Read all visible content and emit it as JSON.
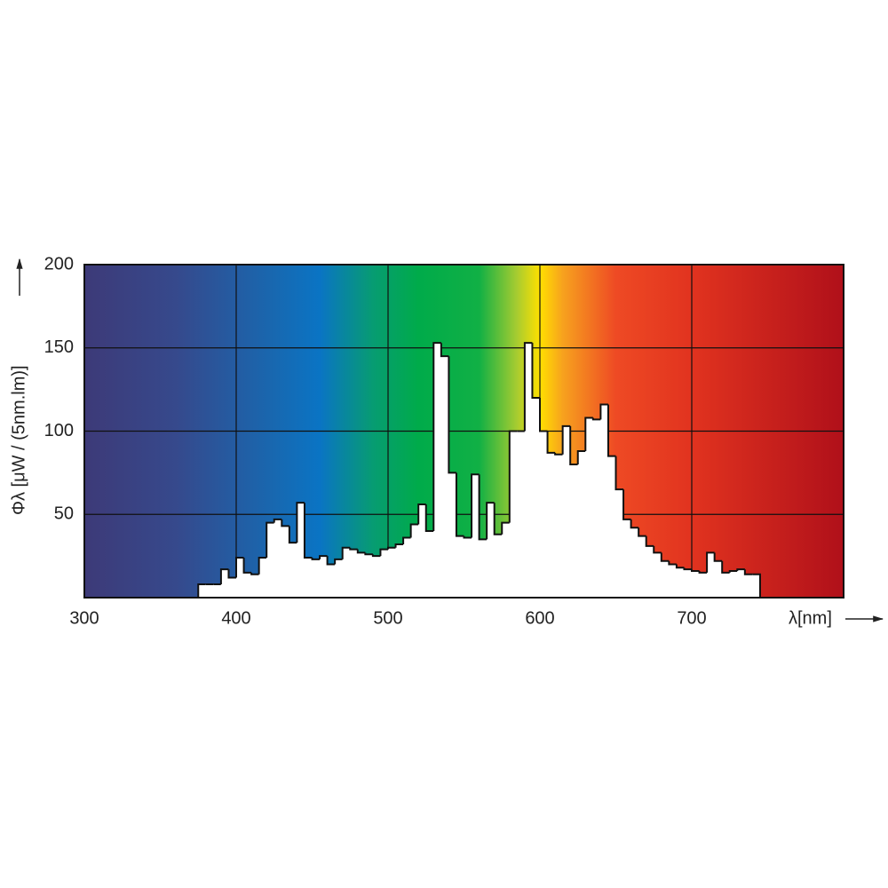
{
  "chart_data": {
    "type": "histogram",
    "x_label": "λ[nm]",
    "y_label": "Φλ [μW / (5nm.lm)]",
    "xlim": [
      300,
      800
    ],
    "xticks": [
      300,
      400,
      500,
      600,
      700
    ],
    "ylim": [
      0,
      200
    ],
    "yticks": [
      50,
      100,
      150,
      200
    ],
    "grid": true,
    "color": "#ffffff",
    "bins": [
      375,
      380,
      385,
      390,
      395,
      400,
      405,
      410,
      415,
      420,
      425,
      430,
      435,
      440,
      445,
      450,
      455,
      460,
      465,
      470,
      475,
      480,
      485,
      490,
      495,
      500,
      505,
      510,
      515,
      520,
      525,
      530,
      535,
      540,
      545,
      550,
      555,
      560,
      565,
      570,
      575,
      580,
      585,
      590,
      595,
      600,
      605,
      610,
      615,
      620,
      625,
      630,
      635,
      640,
      645,
      650,
      655,
      660,
      665,
      670,
      675,
      680,
      685,
      690,
      695,
      700,
      705,
      710,
      715,
      720,
      725,
      730,
      735,
      740,
      745
    ],
    "values": [
      8,
      8,
      8,
      17,
      12,
      24,
      15,
      14,
      24,
      45,
      47,
      43,
      33,
      57,
      24,
      23,
      25,
      20,
      23,
      30,
      29,
      27,
      26,
      25,
      29,
      30,
      32,
      36,
      44,
      56,
      40,
      153,
      145,
      75,
      37,
      36,
      74,
      35,
      57,
      38,
      45,
      100,
      100,
      153,
      120,
      100,
      87,
      86,
      103,
      80,
      88,
      108,
      107,
      116,
      85,
      65,
      47,
      42,
      37,
      31,
      27,
      22,
      20,
      18,
      17,
      16,
      15,
      27,
      22,
      15,
      16,
      17,
      14,
      14
    ]
  }
}
